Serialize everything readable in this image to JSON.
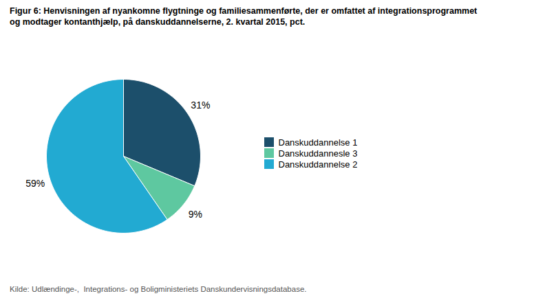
{
  "chart_data": {
    "type": "pie",
    "title": "Figur 6: Henvisningen af nyankomne flygtninge og familiesammenførte, der er omfattet af integrationsprogrammet",
    "subtitle": "og modtager kontanthjælp, på danskuddannelserne, 2. kvartal 2015, pct.",
    "caption": "Kilde: Udlændinge-,  Integrations- og Boligministeriets Danskundervisningsdatabase.",
    "categories": [
      "Danskuddannelse 1",
      "Danskuddannesle 3",
      "Danskuddannelse 2"
    ],
    "values": [
      31,
      9,
      59
    ],
    "value_labels": [
      "31%",
      "9%",
      "59%"
    ],
    "colors": [
      "#1c4f6b",
      "#5ec8a0",
      "#22aad2"
    ],
    "data_labels": true,
    "legend": "right"
  }
}
